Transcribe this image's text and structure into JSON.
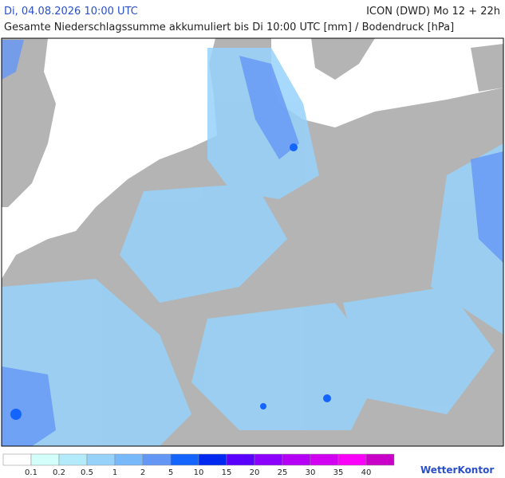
{
  "header": {
    "date": "Di, 04.08.2026 10:00 UTC",
    "model": "ICON (DWD) Mo 12 + 22h",
    "subtitle": "Gesamte Niederschlagssumme akkumuliert bis Di 10:00 UTC [mm] / Bodendruck [hPa]"
  },
  "legend": {
    "colors": [
      "#ffffff",
      "#d2fffa",
      "#b4ebfa",
      "#96d2fa",
      "#78b9fa",
      "#6496f5",
      "#1464ff",
      "#0028f0",
      "#5a00ff",
      "#8c00ff",
      "#b400f5",
      "#d200f0",
      "#fa00fa",
      "#c800c8"
    ],
    "labels": [
      "0.1",
      "0.2",
      "0.5",
      "1",
      "2",
      "5",
      "10",
      "15",
      "20",
      "25",
      "30",
      "35",
      "40"
    ]
  },
  "logo": "WetterKontor"
}
